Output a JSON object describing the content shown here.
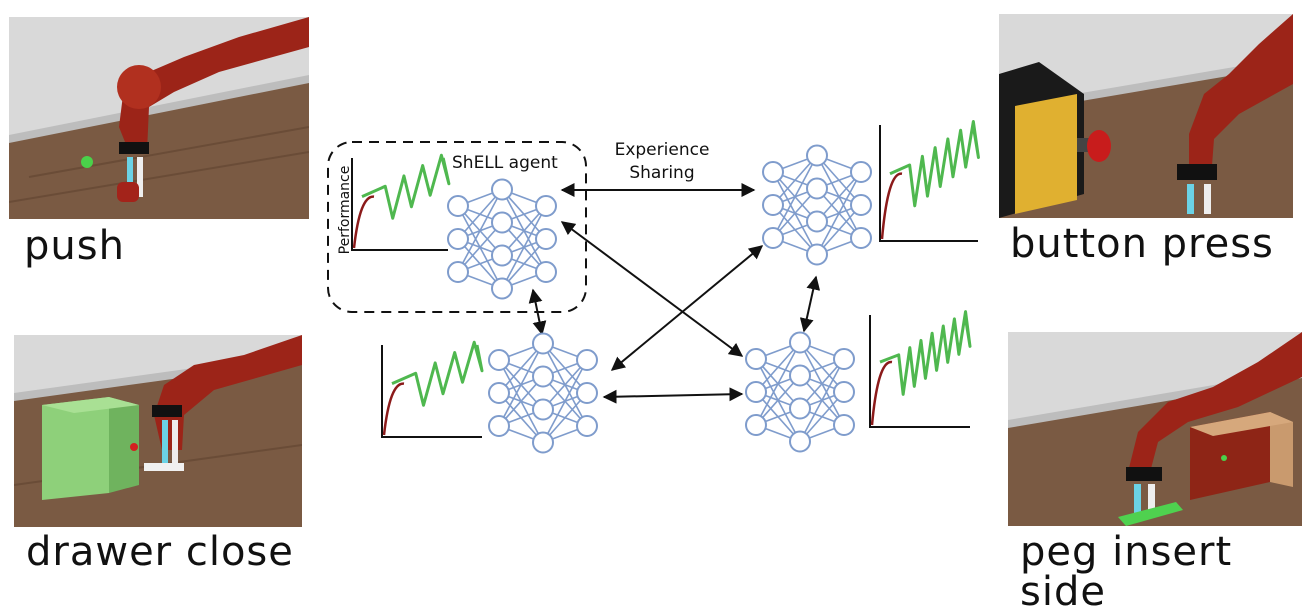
{
  "tasks": [
    {
      "label": "push"
    },
    {
      "label": "drawer close"
    },
    {
      "label": "button press"
    },
    {
      "label": "peg insert\nside"
    }
  ],
  "diagram": {
    "agent_label": "ShELL agent",
    "axis_label": "Performance",
    "sharing_label_line1": "Experience",
    "sharing_label_line2": "Sharing"
  },
  "colors": {
    "node_stroke": "#7f9ccc",
    "curve_green": "#4fb84f",
    "curve_red": "#8b1a1a",
    "robot_red": "#9c2418",
    "floor": "#7a5a43"
  }
}
